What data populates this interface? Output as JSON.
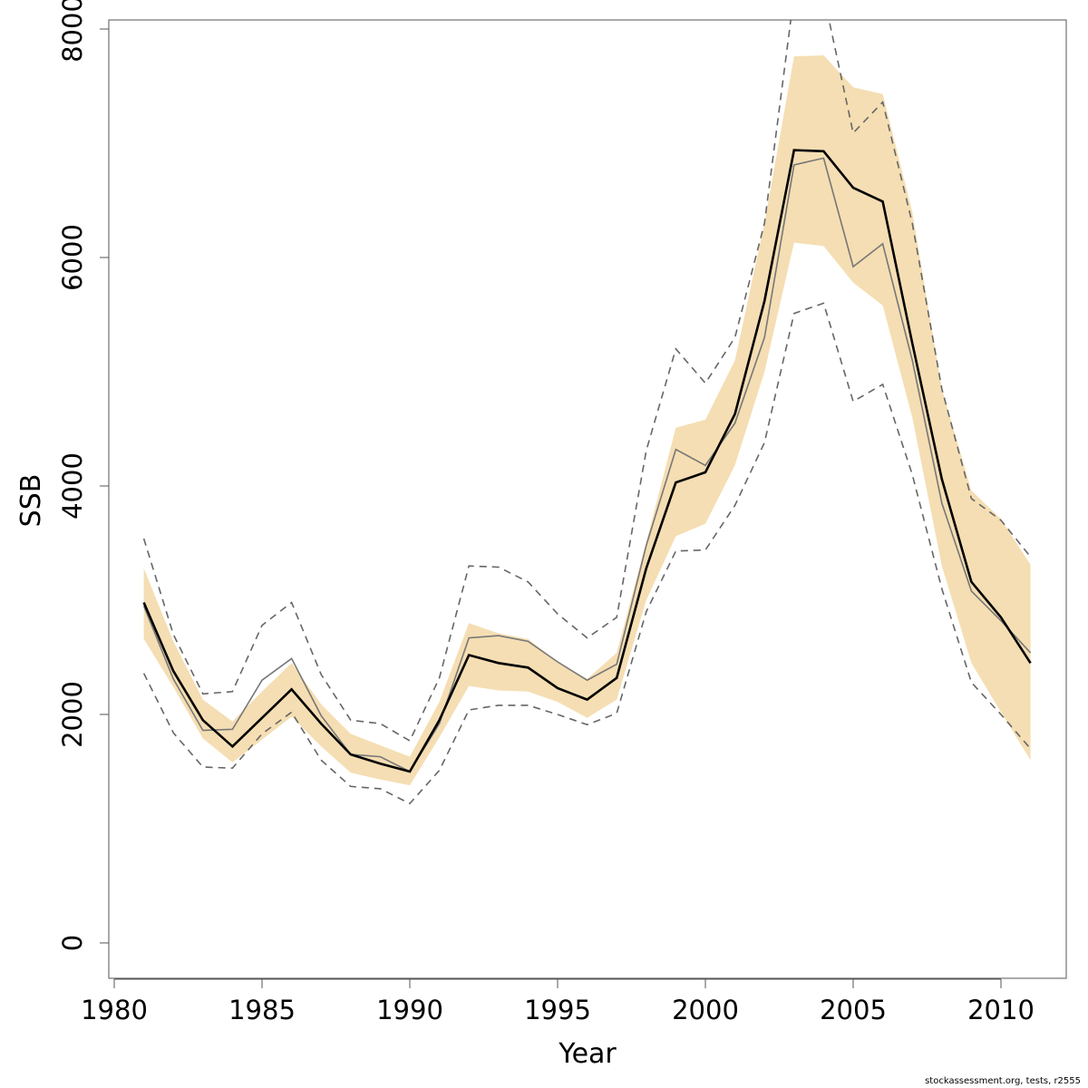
{
  "chart_data": {
    "type": "line",
    "xlabel": "Year",
    "ylabel": "SSB",
    "xlim": [
      1980,
      2012
    ],
    "ylim": [
      0,
      8000
    ],
    "x_ticks": [
      1980,
      1985,
      1990,
      1995,
      2000,
      2005,
      2010
    ],
    "y_ticks": [
      0,
      2000,
      4000,
      6000,
      8000
    ],
    "x_tick_labels": [
      "1980",
      "1985",
      "1990",
      "1995",
      "2000",
      "2005",
      "2010"
    ],
    "y_tick_labels": [
      "0",
      "2000",
      "4000",
      "6000",
      "8000"
    ],
    "x": [
      1981,
      1982,
      1983,
      1984,
      1985,
      1986,
      1987,
      1988,
      1989,
      1990,
      1991,
      1992,
      1993,
      1994,
      1995,
      1996,
      1997,
      1998,
      1999,
      2000,
      2001,
      2002,
      2003,
      2004,
      2005,
      2006,
      2007,
      2008,
      2009,
      2010,
      2011
    ],
    "band_color": "#f5deb3",
    "series": [
      {
        "style": "band",
        "lower": [
          2660,
          2240,
          1790,
          1580,
          1780,
          1980,
          1720,
          1490,
          1430,
          1380,
          1800,
          2250,
          2210,
          2200,
          2110,
          1970,
          2130,
          3000,
          3560,
          3670,
          4180,
          5000,
          6130,
          6100,
          5780,
          5580,
          4600,
          3300,
          2450,
          2020,
          1600
        ],
        "upper": [
          3280,
          2640,
          2130,
          1940,
          2200,
          2450,
          2090,
          1830,
          1730,
          1630,
          2110,
          2800,
          2710,
          2660,
          2460,
          2310,
          2540,
          3510,
          4510,
          4580,
          5100,
          6300,
          7760,
          7770,
          7490,
          7430,
          6400,
          4850,
          3960,
          3710,
          3310
        ]
      },
      {
        "style": "thick-black",
        "color": "#000000",
        "values": [
          2980,
          2380,
          1950,
          1720,
          1970,
          2220,
          1920,
          1650,
          1570,
          1500,
          1950,
          2520,
          2450,
          2410,
          2230,
          2130,
          2320,
          3280,
          4030,
          4120,
          4630,
          5620,
          6940,
          6930,
          6610,
          6490,
          5250,
          4060,
          3160,
          2850,
          2450
        ]
      },
      {
        "style": "thin-grey",
        "color": "#777777",
        "values": [
          2950,
          2310,
          1860,
          1870,
          2300,
          2490,
          1990,
          1650,
          1630,
          1500,
          1920,
          2670,
          2690,
          2640,
          2460,
          2300,
          2440,
          3480,
          4320,
          4180,
          4550,
          5300,
          6810,
          6870,
          5920,
          6120,
          5100,
          3850,
          3080,
          2820,
          2540
        ]
      },
      {
        "style": "dashed-upper",
        "color": "#666666",
        "values": [
          3540,
          2700,
          2180,
          2200,
          2780,
          2980,
          2350,
          1950,
          1920,
          1770,
          2320,
          3300,
          3290,
          3160,
          2880,
          2670,
          2850,
          4310,
          5200,
          4900,
          5300,
          6300,
          8300,
          8300,
          7090,
          7360,
          6300,
          4850,
          3890,
          3700,
          3380
        ]
      },
      {
        "style": "dashed-lower",
        "color": "#666666",
        "values": [
          2360,
          1840,
          1540,
          1530,
          1830,
          2020,
          1600,
          1370,
          1350,
          1220,
          1510,
          2040,
          2080,
          2080,
          2000,
          1910,
          2010,
          2900,
          3430,
          3440,
          3830,
          4380,
          5510,
          5600,
          4740,
          4890,
          4100,
          3100,
          2280,
          2000,
          1700
        ]
      }
    ]
  },
  "footnote": "stockassessment.org, tests, r2555"
}
